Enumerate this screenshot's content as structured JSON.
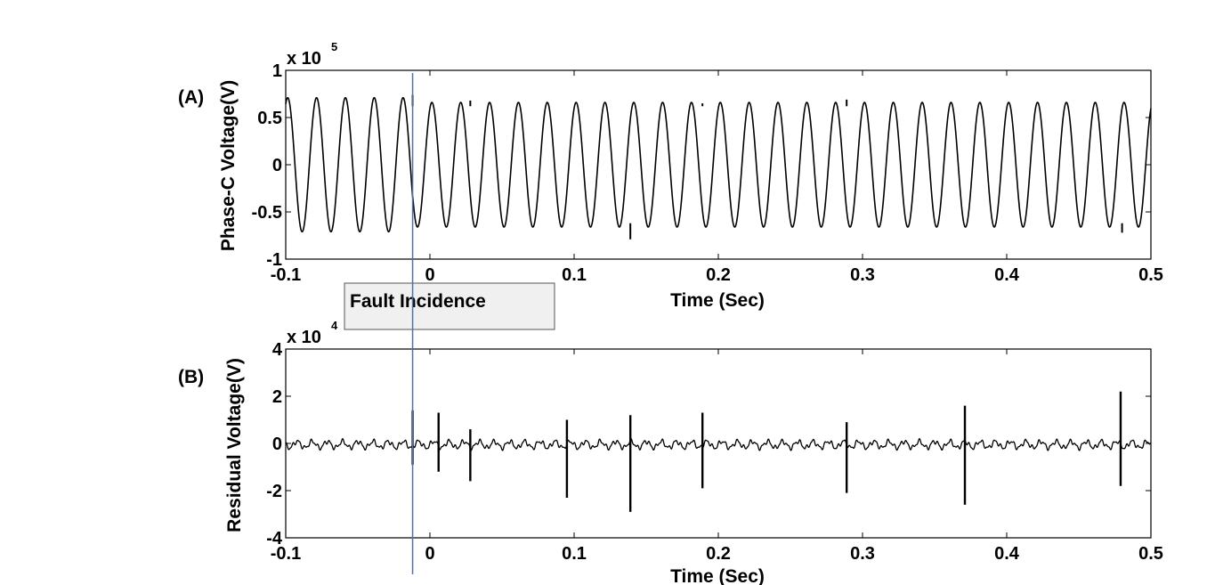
{
  "chart_data": [
    {
      "type": "line",
      "panel_label": "(A)",
      "xlabel": "Time (Sec)",
      "ylabel": "Phase-C Voltage(V)",
      "y_exponent": {
        "base": "x 10",
        "power": "5"
      },
      "xlim": [
        -0.1,
        0.5
      ],
      "ylim": [
        -1,
        1
      ],
      "x_ticks": [
        "-0.1",
        "0",
        "0.1",
        "0.2",
        "0.3",
        "0.4",
        "0.5"
      ],
      "x_tick_values": [
        -0.1,
        0,
        0.1,
        0.2,
        0.3,
        0.4,
        0.5
      ],
      "y_ticks": [
        "1",
        "0.5",
        "0",
        "-0.5",
        "-1"
      ],
      "y_tick_values": [
        1,
        0.5,
        0,
        -0.5,
        -1
      ],
      "series": [
        {
          "color": "#000000",
          "frequency_hz": 50,
          "amplitude_prefault": 0.71,
          "amplitude_postfault": 0.66,
          "spikes": [
            {
              "x": -0.012,
              "y": 0.74
            },
            {
              "x": 0.028,
              "y": 0.68
            },
            {
              "x": 0.139,
              "y": -0.79
            },
            {
              "x": 0.189,
              "y": 0.65
            },
            {
              "x": 0.289,
              "y": 0.69
            },
            {
              "x": 0.48,
              "y": -0.72
            }
          ]
        }
      ]
    },
    {
      "type": "line",
      "panel_label": "(B)",
      "xlabel": "Time (Sec)",
      "ylabel": "Residual Voltage(V)",
      "y_exponent": {
        "base": "x 10",
        "power": "4"
      },
      "xlim": [
        -0.1,
        0.5
      ],
      "ylim": [
        -4,
        4
      ],
      "x_ticks": [
        "-0.1",
        "0",
        "0.1",
        "0.2",
        "0.3",
        "0.4",
        "0.5"
      ],
      "x_tick_values": [
        -0.1,
        0,
        0.1,
        0.2,
        0.3,
        0.4,
        0.5
      ],
      "y_ticks": [
        "4",
        "2",
        "0",
        "-2",
        "-4"
      ],
      "y_tick_values": [
        4,
        2,
        0,
        -2,
        -4
      ],
      "series": [
        {
          "color": "#000000",
          "baseline_noise_amplitude": 0.25,
          "spikes": [
            {
              "x": -0.012,
              "max": 1.4,
              "min": -0.9
            },
            {
              "x": 0.006,
              "max": 1.3,
              "min": -1.2
            },
            {
              "x": 0.028,
              "max": 0.6,
              "min": -1.6
            },
            {
              "x": 0.095,
              "max": 1.0,
              "min": -2.3
            },
            {
              "x": 0.139,
              "max": 1.2,
              "min": -2.9
            },
            {
              "x": 0.189,
              "max": 1.3,
              "min": -1.9
            },
            {
              "x": 0.289,
              "max": 0.9,
              "min": -2.1
            },
            {
              "x": 0.371,
              "max": 1.6,
              "min": -2.6
            },
            {
              "x": 0.479,
              "max": 2.2,
              "min": -1.8
            }
          ]
        }
      ]
    }
  ],
  "annotation": {
    "text": "Fault Incidence",
    "marker_x": -0.012,
    "marker_color": "#4472c4"
  }
}
